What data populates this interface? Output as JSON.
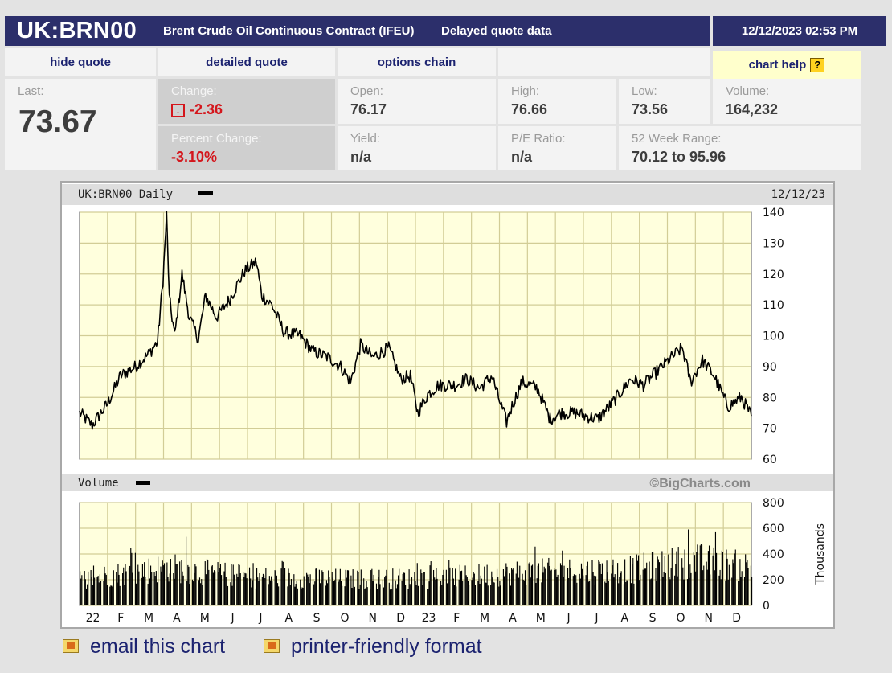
{
  "header": {
    "symbol": "UK:BRN00",
    "description": "Brent Crude Oil Continuous Contract (IFEU)",
    "delay_note": "Delayed quote data",
    "datetime": "12/12/2023 02:53 PM"
  },
  "nav": {
    "hide_quote": "hide quote",
    "detailed_quote": "detailed quote",
    "options_chain": "options chain",
    "chart_help": "chart help",
    "help_icon_glyph": "?"
  },
  "quote": {
    "last_label": "Last:",
    "last_value": "73.67",
    "change_label": "Change:",
    "change_value": "-2.36",
    "pct_change_label": "Percent Change:",
    "pct_change_value": "-3.10%",
    "open_label": "Open:",
    "open_value": "76.17",
    "yield_label": "Yield:",
    "yield_value": "n/a",
    "high_label": "High:",
    "high_value": "76.66",
    "pe_label": "P/E Ratio:",
    "pe_value": "n/a",
    "low_label": "Low:",
    "low_value": "73.56",
    "volume_label": "Volume:",
    "volume_value": "164,232",
    "week52_label": "52 Week Range:",
    "week52_value": "70.12 to 95.96"
  },
  "chart": {
    "title": "UK:BRN00 Daily",
    "date": "12/12/23",
    "volume_title": "Volume",
    "watermark": "©BigCharts.com",
    "volume_unit": "Thousands"
  },
  "footer": {
    "email_link": "email this chart",
    "print_link": "printer-friendly format"
  },
  "colors": {
    "header_bg": "#2c2f6b",
    "plot_bg": "#ffffdd",
    "grid": "#d2cd96",
    "negative": "#d4161c",
    "link": "#1c2370"
  },
  "chart_data": [
    {
      "type": "line",
      "title": "UK:BRN00 Daily",
      "ylim": [
        60,
        140
      ],
      "yticks": [
        60,
        70,
        80,
        90,
        100,
        110,
        120,
        130,
        140
      ],
      "xticks": [
        "22",
        "F",
        "M",
        "A",
        "M",
        "J",
        "J",
        "A",
        "S",
        "O",
        "N",
        "D",
        "23",
        "F",
        "M",
        "A",
        "M",
        "J",
        "J",
        "A",
        "S",
        "O",
        "N",
        "D"
      ],
      "grid": true,
      "series": [
        {
          "name": "UK:BRN00",
          "x": [
            "2021-12-01",
            "2021-12-15",
            "2022-01-01",
            "2022-01-15",
            "2022-02-01",
            "2022-02-15",
            "2022-02-25",
            "2022-03-03",
            "2022-03-07",
            "2022-03-10",
            "2022-03-16",
            "2022-03-24",
            "2022-04-01",
            "2022-04-11",
            "2022-04-19",
            "2022-05-01",
            "2022-05-16",
            "2022-06-01",
            "2022-06-14",
            "2022-06-20",
            "2022-07-01",
            "2022-07-15",
            "2022-08-01",
            "2022-08-15",
            "2022-09-01",
            "2022-09-15",
            "2022-09-26",
            "2022-10-07",
            "2022-10-20",
            "2022-11-07",
            "2022-11-20",
            "2022-12-01",
            "2022-12-09",
            "2022-12-20",
            "2023-01-01",
            "2023-01-20",
            "2023-02-01",
            "2023-02-15",
            "2023-03-01",
            "2023-03-08",
            "2023-03-17",
            "2023-03-24",
            "2023-04-03",
            "2023-04-20",
            "2023-05-04",
            "2023-05-15",
            "2023-06-01",
            "2023-06-12",
            "2023-06-26",
            "2023-07-14",
            "2023-08-01",
            "2023-08-15",
            "2023-09-01",
            "2023-09-15",
            "2023-09-27",
            "2023-10-06",
            "2023-10-19",
            "2023-11-01",
            "2023-11-16",
            "2023-12-01",
            "2023-12-12"
          ],
          "y": [
            75,
            71,
            78,
            87,
            90,
            94,
            98,
            118,
            139,
            112,
            100,
            120,
            106,
            99,
            113,
            106,
            112,
            121,
            124,
            113,
            110,
            101,
            100,
            95,
            93,
            90,
            85,
            97,
            93,
            96,
            86,
            87,
            75,
            81,
            84,
            84,
            86,
            83,
            87,
            80,
            72,
            78,
            85,
            83,
            73,
            75,
            75,
            74,
            73,
            79,
            86,
            84,
            89,
            93,
            96,
            85,
            92,
            87,
            77,
            80,
            74
          ]
        }
      ]
    },
    {
      "type": "bar",
      "title": "Volume",
      "ylabel": "Thousands",
      "ylim": [
        0,
        800
      ],
      "yticks": [
        0,
        200,
        400,
        600,
        800
      ],
      "x_range": [
        "2021-12-01",
        "2023-12-12"
      ],
      "level_profile": [
        {
          "x": "2021-12-01",
          "typical": 220,
          "peak": 320
        },
        {
          "x": "2022-03-08",
          "typical": 320,
          "peak": 620
        },
        {
          "x": "2022-06-01",
          "typical": 240,
          "peak": 360
        },
        {
          "x": "2022-10-01",
          "typical": 220,
          "peak": 330
        },
        {
          "x": "2023-01-01",
          "typical": 230,
          "peak": 350
        },
        {
          "x": "2023-04-03",
          "typical": 280,
          "peak": 540
        },
        {
          "x": "2023-08-01",
          "typical": 300,
          "peak": 460
        },
        {
          "x": "2023-10-09",
          "typical": 380,
          "peak": 620
        },
        {
          "x": "2023-12-12",
          "typical": 320,
          "peak": 590
        }
      ]
    }
  ]
}
